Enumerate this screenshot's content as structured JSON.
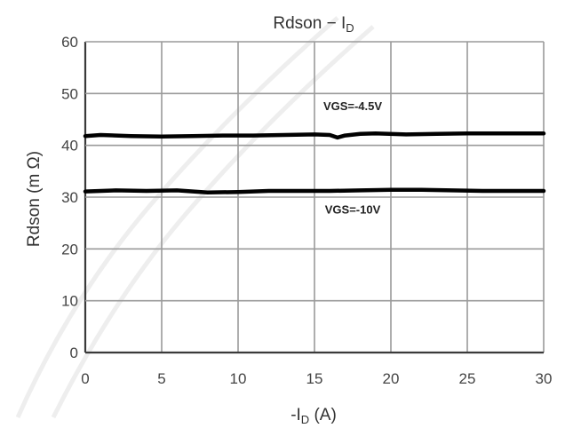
{
  "chart_data": {
    "type": "line",
    "title": "Rdson − I",
    "title_sub": "D",
    "xlabel": "-I",
    "xlabel_sub": "D",
    "xlabel_suffix": " (A)",
    "ylabel": "Rdson (m Ω)",
    "xlim": [
      0,
      30
    ],
    "ylim": [
      0,
      60
    ],
    "x_ticks": [
      0,
      5,
      10,
      15,
      20,
      25,
      30
    ],
    "y_ticks": [
      0,
      10,
      20,
      30,
      40,
      50,
      60
    ],
    "grid": true,
    "series": [
      {
        "name": "VGS=-4.5V",
        "x": [
          0,
          1,
          3,
          5,
          7,
          9,
          11,
          13,
          15,
          16,
          16.5,
          17,
          18,
          19,
          21,
          23,
          25,
          27,
          30
        ],
        "y": [
          41.8,
          42.0,
          41.8,
          41.7,
          41.8,
          41.9,
          41.9,
          42.0,
          42.1,
          42.0,
          41.5,
          41.9,
          42.2,
          42.3,
          42.1,
          42.2,
          42.3,
          42.3,
          42.3
        ]
      },
      {
        "name": "VGS=-10V",
        "x": [
          0,
          2,
          4,
          6,
          8,
          10,
          12,
          14,
          16,
          18,
          20,
          22,
          24,
          26,
          28,
          30
        ],
        "y": [
          31.1,
          31.3,
          31.2,
          31.3,
          30.9,
          31.0,
          31.2,
          31.2,
          31.2,
          31.3,
          31.4,
          31.4,
          31.3,
          31.2,
          31.2,
          31.2
        ]
      }
    ],
    "annotations": [
      {
        "text": "VGS=-4.5V",
        "x": 17.5,
        "y": 46.8
      },
      {
        "text": "VGS=-10V",
        "x": 17.5,
        "y": 26.8
      }
    ]
  }
}
